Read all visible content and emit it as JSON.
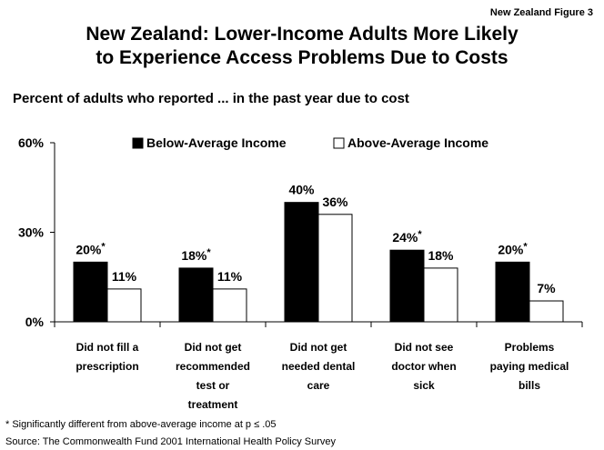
{
  "figure_label": "New Zealand Figure 3",
  "title_line1": "New Zealand: Lower-Income Adults More Likely",
  "title_line2": "to Experience Access Problems Due to Costs",
  "subtitle": "Percent of adults who reported ... in the past year due to cost",
  "footnote": "* Significantly different from above-average income at p ≤ .05",
  "source": "Source: The Commonwealth Fund 2001 International Health Policy Survey",
  "chart_data": {
    "type": "bar",
    "ylim": [
      0,
      60
    ],
    "yticks": [
      0,
      30,
      60
    ],
    "ytick_labels": [
      "0%",
      "30%",
      "60%"
    ],
    "legend_position": "top",
    "categories": [
      [
        "Did not fill a",
        "prescription"
      ],
      [
        "Did not get",
        "recommended",
        "test or",
        "treatment"
      ],
      [
        "Did not get",
        "needed dental",
        "care"
      ],
      [
        "Did not see",
        "doctor when",
        "sick"
      ],
      [
        "Problems",
        "paying medical",
        "bills"
      ]
    ],
    "series": [
      {
        "name": "Below-Average Income",
        "color": "#000000",
        "values": [
          20,
          18,
          40,
          24,
          20
        ],
        "labels": [
          "20%",
          "18%",
          "40%",
          "24%",
          "20%"
        ],
        "significant": [
          true,
          true,
          false,
          true,
          true
        ]
      },
      {
        "name": "Above-Average Income",
        "color": "#ffffff",
        "values": [
          11,
          11,
          36,
          18,
          7
        ],
        "labels": [
          "11%",
          "11%",
          "36%",
          "18%",
          "7%"
        ],
        "significant": [
          false,
          false,
          false,
          false,
          false
        ]
      }
    ]
  }
}
